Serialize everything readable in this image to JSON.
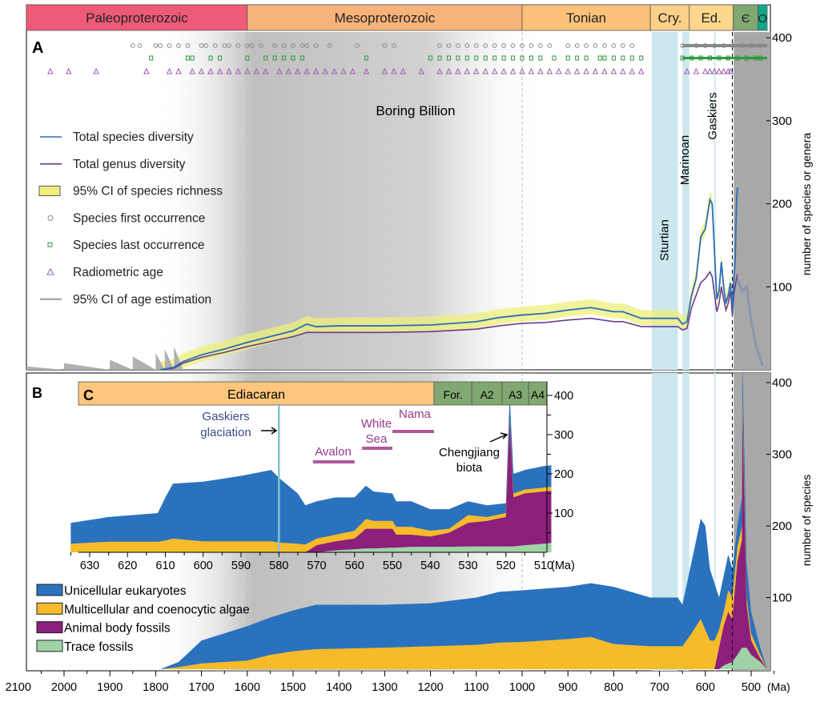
{
  "chart_data": [
    {
      "panel": "A",
      "type": "line",
      "ylabel": "number of species or genera",
      "yticks": [
        100,
        200,
        300,
        400
      ],
      "ylim": [
        0,
        400
      ],
      "xlim": [
        2100,
        465
      ],
      "periods": [
        {
          "label": "Paleoproterozoic",
          "start": 2100,
          "end": 1600,
          "color": "#ef5a78"
        },
        {
          "label": "Mesoproterozoic",
          "start": 1600,
          "end": 1000,
          "color": "#f7b37a"
        },
        {
          "label": "Tonian",
          "start": 1000,
          "end": 720,
          "color": "#fcc27a"
        },
        {
          "label": "Cry.",
          "start": 720,
          "end": 635,
          "color": "#fdd08a"
        },
        {
          "label": "Ed.",
          "start": 635,
          "end": 539,
          "color": "#fed68c"
        },
        {
          "label": "Є",
          "start": 539,
          "end": 485,
          "color": "#80a870"
        },
        {
          "label": "O",
          "start": 485,
          "end": 465,
          "color": "#10a88a"
        }
      ],
      "annotations": {
        "boring_billion": "Boring Billion",
        "sturtian": "Sturtian",
        "marinoan": "Marinoan",
        "gaskiers": "Gaskiers"
      },
      "glaciations": [
        {
          "name": "Sturtian",
          "start": 717,
          "end": 660
        },
        {
          "name": "Marinoan",
          "start": 650,
          "end": 635
        },
        {
          "name": "Gaskiers",
          "start": 581,
          "end": 579
        }
      ],
      "dashed_line_ma": 541,
      "legend": [
        {
          "label": "Total species diversity",
          "color": "#2d6db5"
        },
        {
          "label": "Total genus diversity",
          "color": "#6a3c8f"
        },
        {
          "label": "95% CI of species richness",
          "color": "#eef07a"
        },
        {
          "label": "Species first occurrence",
          "color": "#888888"
        },
        {
          "label": "Species last occurrence",
          "color": "#2e9a3a"
        },
        {
          "label": "Radiometric age",
          "color": "#9a60b0"
        },
        {
          "label": "95% CI of age estimation",
          "color": "#999999"
        }
      ],
      "species_diversity": [
        [
          1790,
          0
        ],
        [
          1760,
          3
        ],
        [
          1740,
          10
        ],
        [
          1700,
          18
        ],
        [
          1650,
          25
        ],
        [
          1600,
          33
        ],
        [
          1550,
          40
        ],
        [
          1500,
          47
        ],
        [
          1470,
          55
        ],
        [
          1450,
          52
        ],
        [
          1400,
          53
        ],
        [
          1300,
          53
        ],
        [
          1200,
          54
        ],
        [
          1100,
          58
        ],
        [
          1050,
          63
        ],
        [
          1000,
          66
        ],
        [
          950,
          68
        ],
        [
          900,
          72
        ],
        [
          850,
          75
        ],
        [
          800,
          70
        ],
        [
          780,
          70
        ],
        [
          740,
          62
        ],
        [
          700,
          62
        ],
        [
          660,
          62
        ],
        [
          650,
          55
        ],
        [
          640,
          58
        ],
        [
          630,
          90
        ],
        [
          620,
          110
        ],
        [
          610,
          160
        ],
        [
          600,
          170
        ],
        [
          590,
          205
        ],
        [
          585,
          200
        ],
        [
          575,
          85
        ],
        [
          570,
          95
        ],
        [
          565,
          130
        ],
        [
          560,
          100
        ],
        [
          555,
          80
        ],
        [
          550,
          90
        ],
        [
          545,
          105
        ],
        [
          541,
          70
        ],
        [
          538,
          110
        ],
        [
          535,
          130
        ],
        [
          532,
          200
        ],
        [
          530,
          220
        ]
      ],
      "genus_diversity": [
        [
          1790,
          0
        ],
        [
          1760,
          2
        ],
        [
          1740,
          8
        ],
        [
          1700,
          15
        ],
        [
          1650,
          21
        ],
        [
          1600,
          28
        ],
        [
          1550,
          34
        ],
        [
          1500,
          40
        ],
        [
          1470,
          45
        ],
        [
          1400,
          45
        ],
        [
          1300,
          45
        ],
        [
          1200,
          46
        ],
        [
          1100,
          49
        ],
        [
          1050,
          53
        ],
        [
          1000,
          56
        ],
        [
          950,
          57
        ],
        [
          900,
          60
        ],
        [
          850,
          62
        ],
        [
          800,
          58
        ],
        [
          780,
          58
        ],
        [
          740,
          52
        ],
        [
          700,
          52
        ],
        [
          660,
          52
        ],
        [
          650,
          48
        ],
        [
          640,
          50
        ],
        [
          630,
          75
        ],
        [
          620,
          90
        ],
        [
          610,
          105
        ],
        [
          600,
          110
        ],
        [
          590,
          118
        ],
        [
          585,
          112
        ],
        [
          575,
          70
        ],
        [
          570,
          80
        ],
        [
          565,
          100
        ],
        [
          560,
          85
        ],
        [
          555,
          72
        ],
        [
          550,
          80
        ],
        [
          545,
          95
        ],
        [
          541,
          65
        ],
        [
          538,
          90
        ],
        [
          535,
          100
        ],
        [
          532,
          110
        ],
        [
          530,
          115
        ]
      ],
      "age_ci_steps": [
        [
          2100,
          5
        ],
        [
          2000,
          8
        ],
        [
          1900,
          12
        ],
        [
          1850,
          16
        ],
        [
          1800,
          20
        ],
        [
          1780,
          25
        ],
        [
          1760,
          28
        ],
        [
          1740,
          30
        ]
      ],
      "age_ci_tail": [
        [
          530,
          110
        ],
        [
          520,
          95
        ],
        [
          510,
          100
        ],
        [
          500,
          60
        ],
        [
          490,
          30
        ],
        [
          475,
          5
        ]
      ],
      "first_occurrence": [
        1850,
        1835,
        1800,
        1790,
        1770,
        1750,
        1730,
        1700,
        1690,
        1670,
        1650,
        1640,
        1620,
        1600,
        1590,
        1570,
        1540,
        1520,
        1500,
        1480,
        1470,
        1450,
        1420,
        1360,
        1300,
        1280,
        1180,
        1160,
        1140,
        1120,
        1100,
        1080,
        1060,
        1040,
        1020,
        1000,
        980,
        960,
        940,
        900,
        880,
        860,
        840,
        820,
        800,
        780,
        760,
        650,
        620,
        600,
        580,
        560,
        540,
        520,
        500,
        480
      ],
      "last_occurrence": [
        1810,
        1730,
        1720,
        1680,
        1660,
        1600,
        1560,
        1540,
        1520,
        1500,
        1480,
        1340,
        1200,
        1180,
        1160,
        1140,
        1120,
        1100,
        1080,
        1060,
        1040,
        1020,
        1000,
        980,
        960,
        930,
        900,
        880,
        860,
        830,
        820,
        800,
        780,
        760,
        740,
        650,
        630,
        610,
        590,
        570,
        550,
        530,
        510,
        490,
        480
      ],
      "radiometric_age": [
        2090,
        2030,
        1990,
        1930,
        1820,
        1770,
        1750,
        1720,
        1700,
        1680,
        1660,
        1640,
        1620,
        1600,
        1580,
        1560,
        1530,
        1510,
        1490,
        1470,
        1450,
        1430,
        1410,
        1390,
        1370,
        1340,
        1300,
        1280,
        1260,
        1220,
        1180,
        1160,
        1140,
        1120,
        1100,
        1080,
        1060,
        1040,
        1020,
        1000,
        980,
        960,
        940,
        920,
        900,
        880,
        860,
        840,
        820,
        800,
        780,
        760,
        740,
        640,
        620,
        600,
        590,
        580,
        570,
        560,
        550,
        545
      ]
    },
    {
      "panel": "B",
      "type": "area",
      "stacked": true,
      "ylabel": "number of species",
      "yticks": [
        100,
        200,
        300,
        400
      ],
      "ylim": [
        0,
        400
      ],
      "xlabel": "(Ma)",
      "xticks": [
        2100,
        2000,
        1900,
        1800,
        1700,
        1600,
        1500,
        1400,
        1300,
        1200,
        1100,
        1000,
        900,
        800,
        700,
        600,
        500
      ],
      "series": [
        {
          "name": "Unicellular eukaryotes",
          "color": "#2a72bd"
        },
        {
          "name": "Multicellular and coenocytic algae",
          "color": "#f6bb2a"
        },
        {
          "name": "Animal body fossils",
          "color": "#8c1f7c"
        },
        {
          "name": "Trace fossils",
          "color": "#9fd3a6"
        }
      ],
      "points": [
        [
          1790,
          0,
          0,
          0,
          0
        ],
        [
          1750,
          7,
          3,
          0,
          0
        ],
        [
          1700,
          32,
          8,
          0,
          0
        ],
        [
          1650,
          40,
          10,
          0,
          0
        ],
        [
          1600,
          48,
          12,
          0,
          0
        ],
        [
          1550,
          52,
          20,
          0,
          0
        ],
        [
          1500,
          57,
          25,
          0,
          0
        ],
        [
          1450,
          62,
          28,
          0,
          0
        ],
        [
          1300,
          60,
          30,
          0,
          0
        ],
        [
          1200,
          60,
          32,
          0,
          0
        ],
        [
          1100,
          66,
          34,
          0,
          0
        ],
        [
          1050,
          71,
          37,
          0,
          0
        ],
        [
          1000,
          72,
          38,
          0,
          0
        ],
        [
          900,
          73,
          42,
          0,
          0
        ],
        [
          850,
          75,
          45,
          0,
          0
        ],
        [
          800,
          80,
          35,
          0,
          0
        ],
        [
          720,
          68,
          32,
          0,
          0
        ],
        [
          660,
          68,
          32,
          0,
          0
        ],
        [
          650,
          58,
          32,
          0,
          0
        ],
        [
          630,
          100,
          50,
          0,
          0
        ],
        [
          610,
          140,
          70,
          0,
          0
        ],
        [
          600,
          145,
          55,
          0,
          0
        ],
        [
          590,
          100,
          40,
          0,
          0
        ],
        [
          580,
          80,
          40,
          0,
          0
        ],
        [
          570,
          45,
          25,
          30,
          0
        ],
        [
          560,
          50,
          20,
          55,
          5
        ],
        [
          550,
          50,
          30,
          72,
          8
        ],
        [
          541,
          40,
          30,
          60,
          10
        ],
        [
          530,
          30,
          20,
          130,
          20
        ],
        [
          520,
          40,
          20,
          150,
          30
        ],
        [
          519,
          50,
          20,
          330,
          30
        ],
        [
          510,
          50,
          10,
          60,
          30
        ],
        [
          500,
          30,
          10,
          20,
          20
        ],
        [
          480,
          10,
          5,
          5,
          10
        ],
        [
          465,
          0,
          0,
          0,
          0
        ]
      ],
      "point_fields": [
        "Ma",
        "Unicellular eukaryotes",
        "Multicellular and coenocytic algae",
        "Animal body fossils",
        "Trace fossils"
      ]
    },
    {
      "panel": "C",
      "type": "area",
      "stacked": true,
      "xlim": [
        635,
        508
      ],
      "ylim": [
        0,
        400
      ],
      "yticks": [
        100,
        200,
        300,
        400
      ],
      "xticks": [
        630,
        620,
        610,
        600,
        590,
        580,
        570,
        560,
        550,
        540,
        530,
        520,
        510
      ],
      "xlabel": "(Ma)",
      "stages": [
        {
          "label": "Ediacaran",
          "start": 635,
          "end": 539,
          "color": "#fcc67c"
        },
        {
          "label": "For.",
          "start": 539,
          "end": 529,
          "color": "#80a870"
        },
        {
          "label": "A2",
          "start": 529,
          "end": 521,
          "color": "#80a870"
        },
        {
          "label": "A3",
          "start": 521,
          "end": 514,
          "color": "#80a870"
        },
        {
          "label": "A4",
          "start": 514,
          "end": 508,
          "color": "#80a870"
        }
      ],
      "annotations": {
        "gaskiers": [
          "Gaskiers",
          "glaciation"
        ],
        "chengjiang": [
          "Chengjiang",
          "biota"
        ],
        "assemblages": [
          {
            "label": "Avalon",
            "start": 571,
            "end": 560
          },
          {
            "label": "White Sea",
            "start": 558,
            "end": 550
          },
          {
            "label": "Nama",
            "start": 550,
            "end": 539
          }
        ]
      },
      "points": [
        [
          635,
          53,
          22,
          0,
          0
        ],
        [
          625,
          63,
          27,
          0,
          0
        ],
        [
          612,
          73,
          27,
          0,
          0
        ],
        [
          610,
          110,
          30,
          0,
          0
        ],
        [
          608,
          140,
          35,
          0,
          0
        ],
        [
          600,
          152,
          28,
          0,
          0
        ],
        [
          590,
          167,
          28,
          0,
          0
        ],
        [
          582,
          182,
          28,
          0,
          0
        ],
        [
          580,
          165,
          25,
          0,
          0
        ],
        [
          575,
          128,
          22,
          0,
          0
        ],
        [
          573,
          100,
          20,
          0,
          0
        ],
        [
          570,
          95,
          17,
          18,
          0
        ],
        [
          565,
          95,
          17,
          23,
          5
        ],
        [
          560,
          85,
          20,
          27,
          8
        ],
        [
          557,
          85,
          25,
          50,
          10
        ],
        [
          555,
          75,
          20,
          50,
          10
        ],
        [
          550,
          70,
          20,
          48,
          12
        ],
        [
          549,
          65,
          20,
          33,
          12
        ],
        [
          545,
          65,
          20,
          31,
          14
        ],
        [
          540,
          55,
          15,
          26,
          14
        ],
        [
          535,
          50,
          10,
          36,
          14
        ],
        [
          530,
          35,
          20,
          60,
          15
        ],
        [
          525,
          30,
          10,
          65,
          15
        ],
        [
          520,
          25,
          10,
          75,
          15
        ],
        [
          519,
          60,
          10,
          315,
          15
        ],
        [
          518,
          50,
          10,
          125,
          15
        ],
        [
          515,
          50,
          10,
          132,
          18
        ],
        [
          510,
          55,
          10,
          133,
          22
        ],
        [
          508,
          55,
          10,
          133,
          24
        ]
      ]
    }
  ],
  "labels": {
    "panel_a": "A",
    "panel_b": "B",
    "panel_c": "C"
  }
}
